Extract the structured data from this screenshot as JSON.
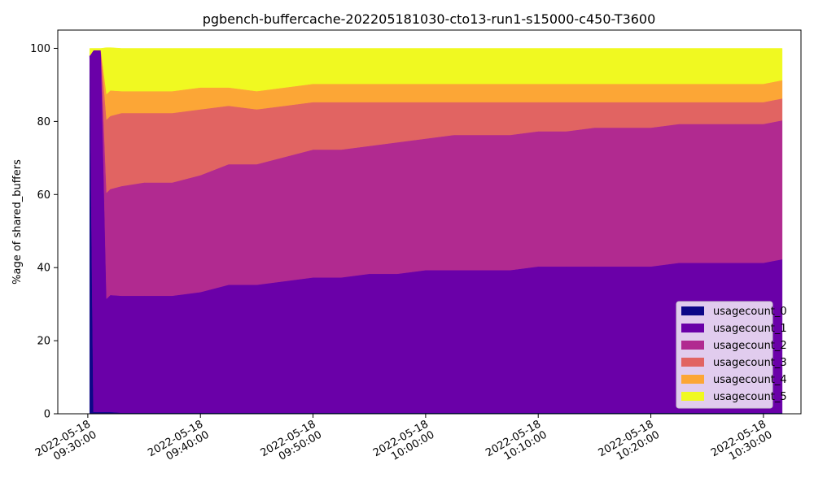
{
  "chart_data": {
    "type": "area",
    "title": "pgbench-buffercache-202205181030-cto13-run1-s15000-c450-T3600",
    "xlabel": "",
    "ylabel": "%age of shared_buffers",
    "ylim": [
      0,
      105
    ],
    "yticks": [
      0,
      20,
      40,
      60,
      80,
      100
    ],
    "xlim": [
      "2022-05-18 09:27:20",
      "2022-05-18 10:33:20"
    ],
    "xticks": [
      {
        "time": "2022-05-18 09:30:00",
        "line1": "2022-05-18",
        "line2": "09:30:00"
      },
      {
        "time": "2022-05-18 09:40:00",
        "line1": "2022-05-18",
        "line2": "09:40:00"
      },
      {
        "time": "2022-05-18 09:50:00",
        "line1": "2022-05-18",
        "line2": "09:50:00"
      },
      {
        "time": "2022-05-18 10:00:00",
        "line1": "2022-05-18",
        "line2": "10:00:00"
      },
      {
        "time": "2022-05-18 10:10:00",
        "line1": "2022-05-18",
        "line2": "10:10:00"
      },
      {
        "time": "2022-05-18 10:20:00",
        "line1": "2022-05-18",
        "line2": "10:20:00"
      },
      {
        "time": "2022-05-18 10:30:00",
        "line1": "2022-05-18",
        "line2": "10:30:00"
      }
    ],
    "grid": false,
    "legend_position": "bottom-right",
    "stacked": true,
    "x": [
      "2022-05-18 09:30:10",
      "2022-05-18 09:30:30",
      "2022-05-18 09:31:10",
      "2022-05-18 09:31:40",
      "2022-05-18 09:32:00",
      "2022-05-18 09:33:00",
      "2022-05-18 09:35:00",
      "2022-05-18 09:37:30",
      "2022-05-18 09:40:00",
      "2022-05-18 09:42:30",
      "2022-05-18 09:45:00",
      "2022-05-18 09:47:30",
      "2022-05-18 09:50:00",
      "2022-05-18 09:52:30",
      "2022-05-18 09:55:00",
      "2022-05-18 09:57:30",
      "2022-05-18 10:00:00",
      "2022-05-18 10:02:30",
      "2022-05-18 10:05:00",
      "2022-05-18 10:07:30",
      "2022-05-18 10:10:00",
      "2022-05-18 10:12:30",
      "2022-05-18 10:15:00",
      "2022-05-18 10:17:30",
      "2022-05-18 10:20:00",
      "2022-05-18 10:22:30",
      "2022-05-18 10:25:00",
      "2022-05-18 10:27:30",
      "2022-05-18 10:30:00",
      "2022-05-18 10:31:40"
    ],
    "series": [
      {
        "name": "usagecount_0",
        "color": "#0d0887",
        "values": [
          98,
          0.5,
          0.5,
          0.5,
          0.5,
          0.3,
          0.3,
          0.3,
          0.3,
          0.3,
          0.3,
          0.3,
          0.3,
          0.3,
          0.3,
          0.3,
          0.3,
          0.3,
          0.3,
          0.3,
          0.3,
          0.3,
          0.3,
          0.3,
          0.3,
          0.3,
          0.3,
          0.3,
          0.3,
          0.3
        ]
      },
      {
        "name": "usagecount_1",
        "color": "#6a00a8",
        "values": [
          0,
          99,
          99,
          31,
          32,
          32,
          32,
          32,
          33,
          35,
          35,
          36,
          37,
          37,
          38,
          38,
          39,
          39,
          39,
          39,
          40,
          40,
          40,
          40,
          40,
          41,
          41,
          41,
          41,
          42
        ]
      },
      {
        "name": "usagecount_2",
        "color": "#b12a90",
        "values": [
          0,
          0,
          0,
          29,
          29,
          30,
          31,
          31,
          32,
          33,
          33,
          34,
          35,
          35,
          35,
          36,
          36,
          37,
          37,
          37,
          37,
          37,
          38,
          38,
          38,
          38,
          38,
          38,
          38,
          38
        ]
      },
      {
        "name": "usagecount_3",
        "color": "#e16462",
        "values": [
          0,
          0,
          0,
          20,
          20,
          20,
          19,
          19,
          18,
          16,
          15,
          14,
          13,
          13,
          12,
          11,
          10,
          9,
          9,
          9,
          8,
          8,
          7,
          7,
          7,
          6,
          6,
          6,
          6,
          6
        ]
      },
      {
        "name": "usagecount_4",
        "color": "#fca636",
        "values": [
          0,
          0,
          0,
          7,
          7,
          6,
          6,
          6,
          6,
          5,
          5,
          5,
          5,
          5,
          5,
          5,
          5,
          5,
          5,
          5,
          5,
          5,
          5,
          5,
          5,
          5,
          5,
          5,
          5,
          5
        ]
      },
      {
        "name": "usagecount_5",
        "color": "#f0f921",
        "values": [
          2,
          0.5,
          0.5,
          12.7,
          11.7,
          11.7,
          11.7,
          11.7,
          10.7,
          10.7,
          11.7,
          10.7,
          9.7,
          9.7,
          9.7,
          9.7,
          9.7,
          9.7,
          9.7,
          9.7,
          9.7,
          9.7,
          9.7,
          9.7,
          9.7,
          9.7,
          9.7,
          9.7,
          9.7,
          8.7
        ]
      }
    ]
  }
}
